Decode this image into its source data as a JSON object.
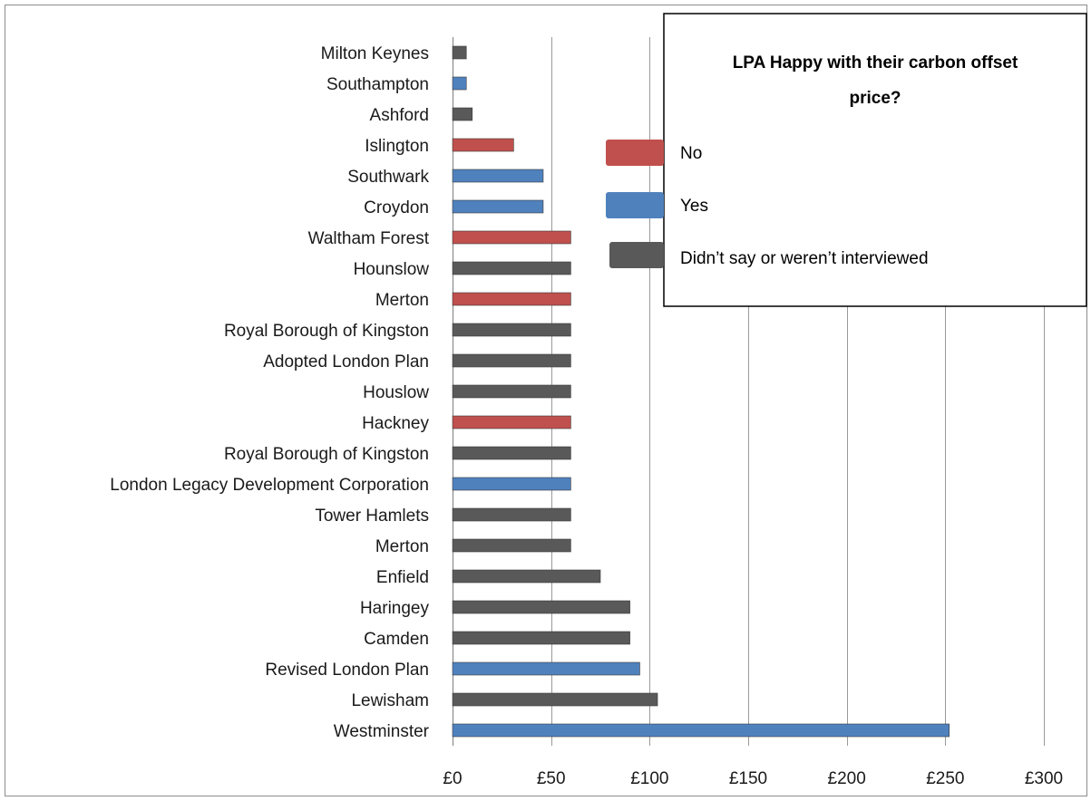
{
  "chart_data": {
    "type": "bar",
    "orientation": "horizontal",
    "categories": [
      "Milton Keynes",
      "Southampton",
      "Ashford",
      "Islington",
      "Southwark",
      "Croydon",
      "Waltham Forest",
      "Hounslow",
      "Merton",
      "Royal Borough of Kingston ",
      "Adopted London Plan",
      "Houslow",
      "Hackney",
      "Royal Borough of Kingston",
      "London Legacy Development Corporation",
      "Tower Hamlets",
      "Merton",
      "Enfield",
      "Haringey",
      "Camden",
      "Revised London Plan",
      "Lewisham",
      "Westminster"
    ],
    "values": [
      7,
      7,
      10,
      31,
      46,
      46,
      60,
      60,
      60,
      60,
      60,
      60,
      60,
      60,
      60,
      60,
      60,
      75,
      90,
      90,
      95,
      104,
      252
    ],
    "groups": [
      "didnt_say",
      "yes",
      "didnt_say",
      "no",
      "yes",
      "yes",
      "no",
      "didnt_say",
      "no",
      "didnt_say",
      "didnt_say",
      "didnt_say",
      "no",
      "didnt_say",
      "yes",
      "didnt_say",
      "didnt_say",
      "didnt_say",
      "didnt_say",
      "didnt_say",
      "yes",
      "didnt_say",
      "yes"
    ],
    "xlim": [
      0,
      300
    ],
    "xticks": [
      0,
      50,
      100,
      150,
      200,
      250,
      300
    ],
    "xtick_labels": [
      "£0",
      "£50",
      "£100",
      "£150",
      "£200",
      "£250",
      "£300"
    ],
    "grid": "vertical",
    "legend": {
      "placement": "top-right",
      "title": "LPA Happy with their carbon offset price?",
      "title_line1": "LPA Happy with their carbon offset",
      "title_line2": "price?",
      "entries": [
        {
          "key": "no",
          "label": "No",
          "color": "#c0504d"
        },
        {
          "key": "yes",
          "label": "Yes",
          "color": "#4f81bd"
        },
        {
          "key": "didnt_say",
          "label": "Didn’t say or weren’t interviewed",
          "color": "#595959"
        }
      ]
    }
  }
}
